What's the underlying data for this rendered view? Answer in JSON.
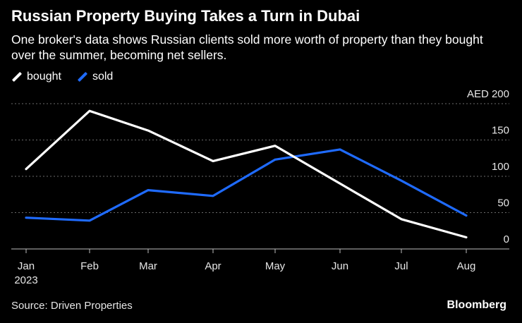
{
  "header": {
    "title": "Russian Property Buying Takes a Turn in Dubai",
    "subtitle": "One broker's data shows Russian clients sold more worth of property than they bought over the summer, becoming net sellers."
  },
  "footer": {
    "source": "Source: Driven Properties",
    "brand": "Bloomberg"
  },
  "chart_data": {
    "type": "line",
    "x": [
      "Jan",
      "Feb",
      "Mar",
      "Apr",
      "May",
      "Jun",
      "Jul",
      "Aug"
    ],
    "x_sub_labels": [
      "2023"
    ],
    "y_tick_labels": [
      "0",
      "50",
      "100",
      "150",
      "AED 200"
    ],
    "y_ticks": [
      0,
      50,
      100,
      150,
      200
    ],
    "ylim": [
      0,
      200
    ],
    "grid": true,
    "legend_position": "top-left",
    "series": [
      {
        "name": "bought",
        "color": "#ffffff",
        "values": [
          110,
          190,
          163,
          121,
          142,
          90,
          41,
          16
        ]
      },
      {
        "name": "sold",
        "color": "#1f6bff",
        "values": [
          43,
          39,
          81,
          73,
          123,
          137,
          94,
          46
        ]
      }
    ]
  }
}
